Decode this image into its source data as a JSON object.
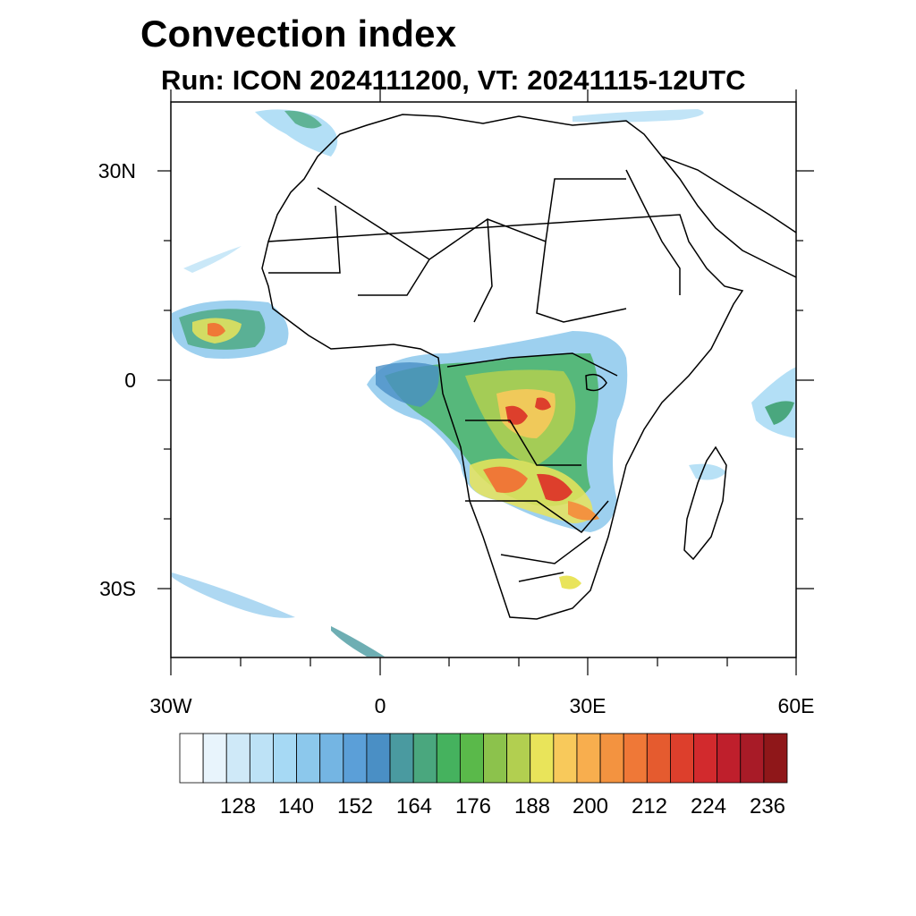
{
  "title": "Convection index",
  "subtitle": "Run: ICON 2024111200,  VT: 20241115-12UTC",
  "axes": {
    "lat_labels": [
      "30N",
      "0",
      "30S"
    ],
    "lon_labels": [
      "30W",
      "0",
      "30E",
      "60E"
    ]
  },
  "colorbar": {
    "labels": [
      "128",
      "140",
      "152",
      "164",
      "176",
      "188",
      "200",
      "212",
      "224",
      "236"
    ],
    "colors": [
      "#ffffff",
      "#e8f4fc",
      "#cfe9f8",
      "#bde2f6",
      "#a6d9f4",
      "#8cc8ec",
      "#74b5e3",
      "#5b9fd8",
      "#4a8fc5",
      "#4a9aa0",
      "#4aa77e",
      "#45b25e",
      "#5ab94a",
      "#8cc24c",
      "#b2cf50",
      "#e9e45a",
      "#f8c95b",
      "#f8ae4e",
      "#f39340",
      "#ef7837",
      "#e55b2f",
      "#dd3f2c",
      "#d22a2d",
      "#bf1f2c",
      "#a81b27",
      "#8f1719"
    ]
  }
}
